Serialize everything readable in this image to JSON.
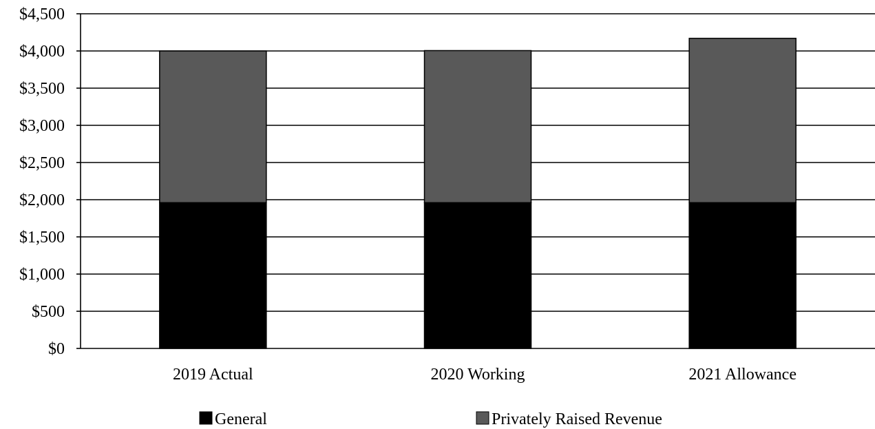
{
  "chart_data": {
    "type": "bar",
    "stacked": true,
    "categories": [
      "2019 Actual",
      "2020 Working",
      "2021 Allowance"
    ],
    "series": [
      {
        "name": "General",
        "values": [
          1960,
          1960,
          1960
        ],
        "color": "#000000"
      },
      {
        "name": "Privately Raised Revenue",
        "values": [
          2040,
          2045,
          2210
        ],
        "color": "#595959"
      }
    ],
    "ylim": [
      0,
      4500
    ],
    "y_ticks": [
      0,
      500,
      1000,
      1500,
      2000,
      2500,
      3000,
      3500,
      4000,
      4500
    ],
    "y_tick_labels": [
      "$0",
      "$500",
      "$1,000",
      "$1,500",
      "$2,000",
      "$2,500",
      "$3,000",
      "$3,500",
      "$4,000",
      "$4,500"
    ],
    "grid": true,
    "legend_position": "bottom",
    "title": "",
    "xlabel": "",
    "ylabel": ""
  }
}
